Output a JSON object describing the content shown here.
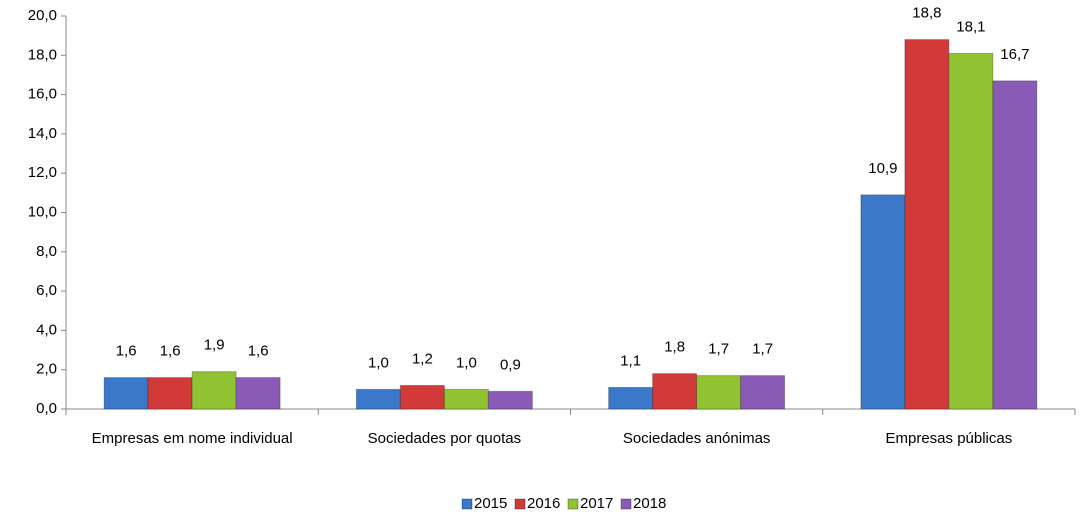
{
  "chart_data": {
    "type": "bar",
    "categories": [
      "Empresas em nome individual",
      "Sociedades por quotas",
      "Sociedades anónimas",
      "Empresas públicas"
    ],
    "series": [
      {
        "name": "2015",
        "color": "#3b78c9",
        "values": [
          1.6,
          1.0,
          1.1,
          10.9
        ],
        "value_labels": [
          "1,6",
          "1,0",
          "1,1",
          "10,9"
        ]
      },
      {
        "name": "2016",
        "color": "#d23a3a",
        "values": [
          1.6,
          1.2,
          1.8,
          18.8
        ],
        "value_labels": [
          "1,6",
          "1,2",
          "1,8",
          "18,8"
        ]
      },
      {
        "name": "2017",
        "color": "#90c232",
        "values": [
          1.9,
          1.0,
          1.7,
          18.1
        ],
        "value_labels": [
          "1,9",
          "1,0",
          "1,7",
          "18,1"
        ]
      },
      {
        "name": "2018",
        "color": "#8a5bb6",
        "values": [
          1.6,
          0.9,
          1.7,
          16.7
        ],
        "value_labels": [
          "1,6",
          "0,9",
          "1,7",
          "16,7"
        ]
      }
    ],
    "ylim": [
      0,
      20
    ],
    "yticks": [
      {
        "value": 0,
        "label": "0,0"
      },
      {
        "value": 2,
        "label": "2,0"
      },
      {
        "value": 4,
        "label": "4,0"
      },
      {
        "value": 6,
        "label": "6,0"
      },
      {
        "value": 8,
        "label": "8,0"
      },
      {
        "value": 10,
        "label": "10,0"
      },
      {
        "value": 12,
        "label": "12,0"
      },
      {
        "value": 14,
        "label": "14,0"
      },
      {
        "value": 16,
        "label": "16,0"
      },
      {
        "value": 18,
        "label": "18,0"
      },
      {
        "value": 20,
        "label": "20,0"
      }
    ],
    "legend": "bottom"
  }
}
